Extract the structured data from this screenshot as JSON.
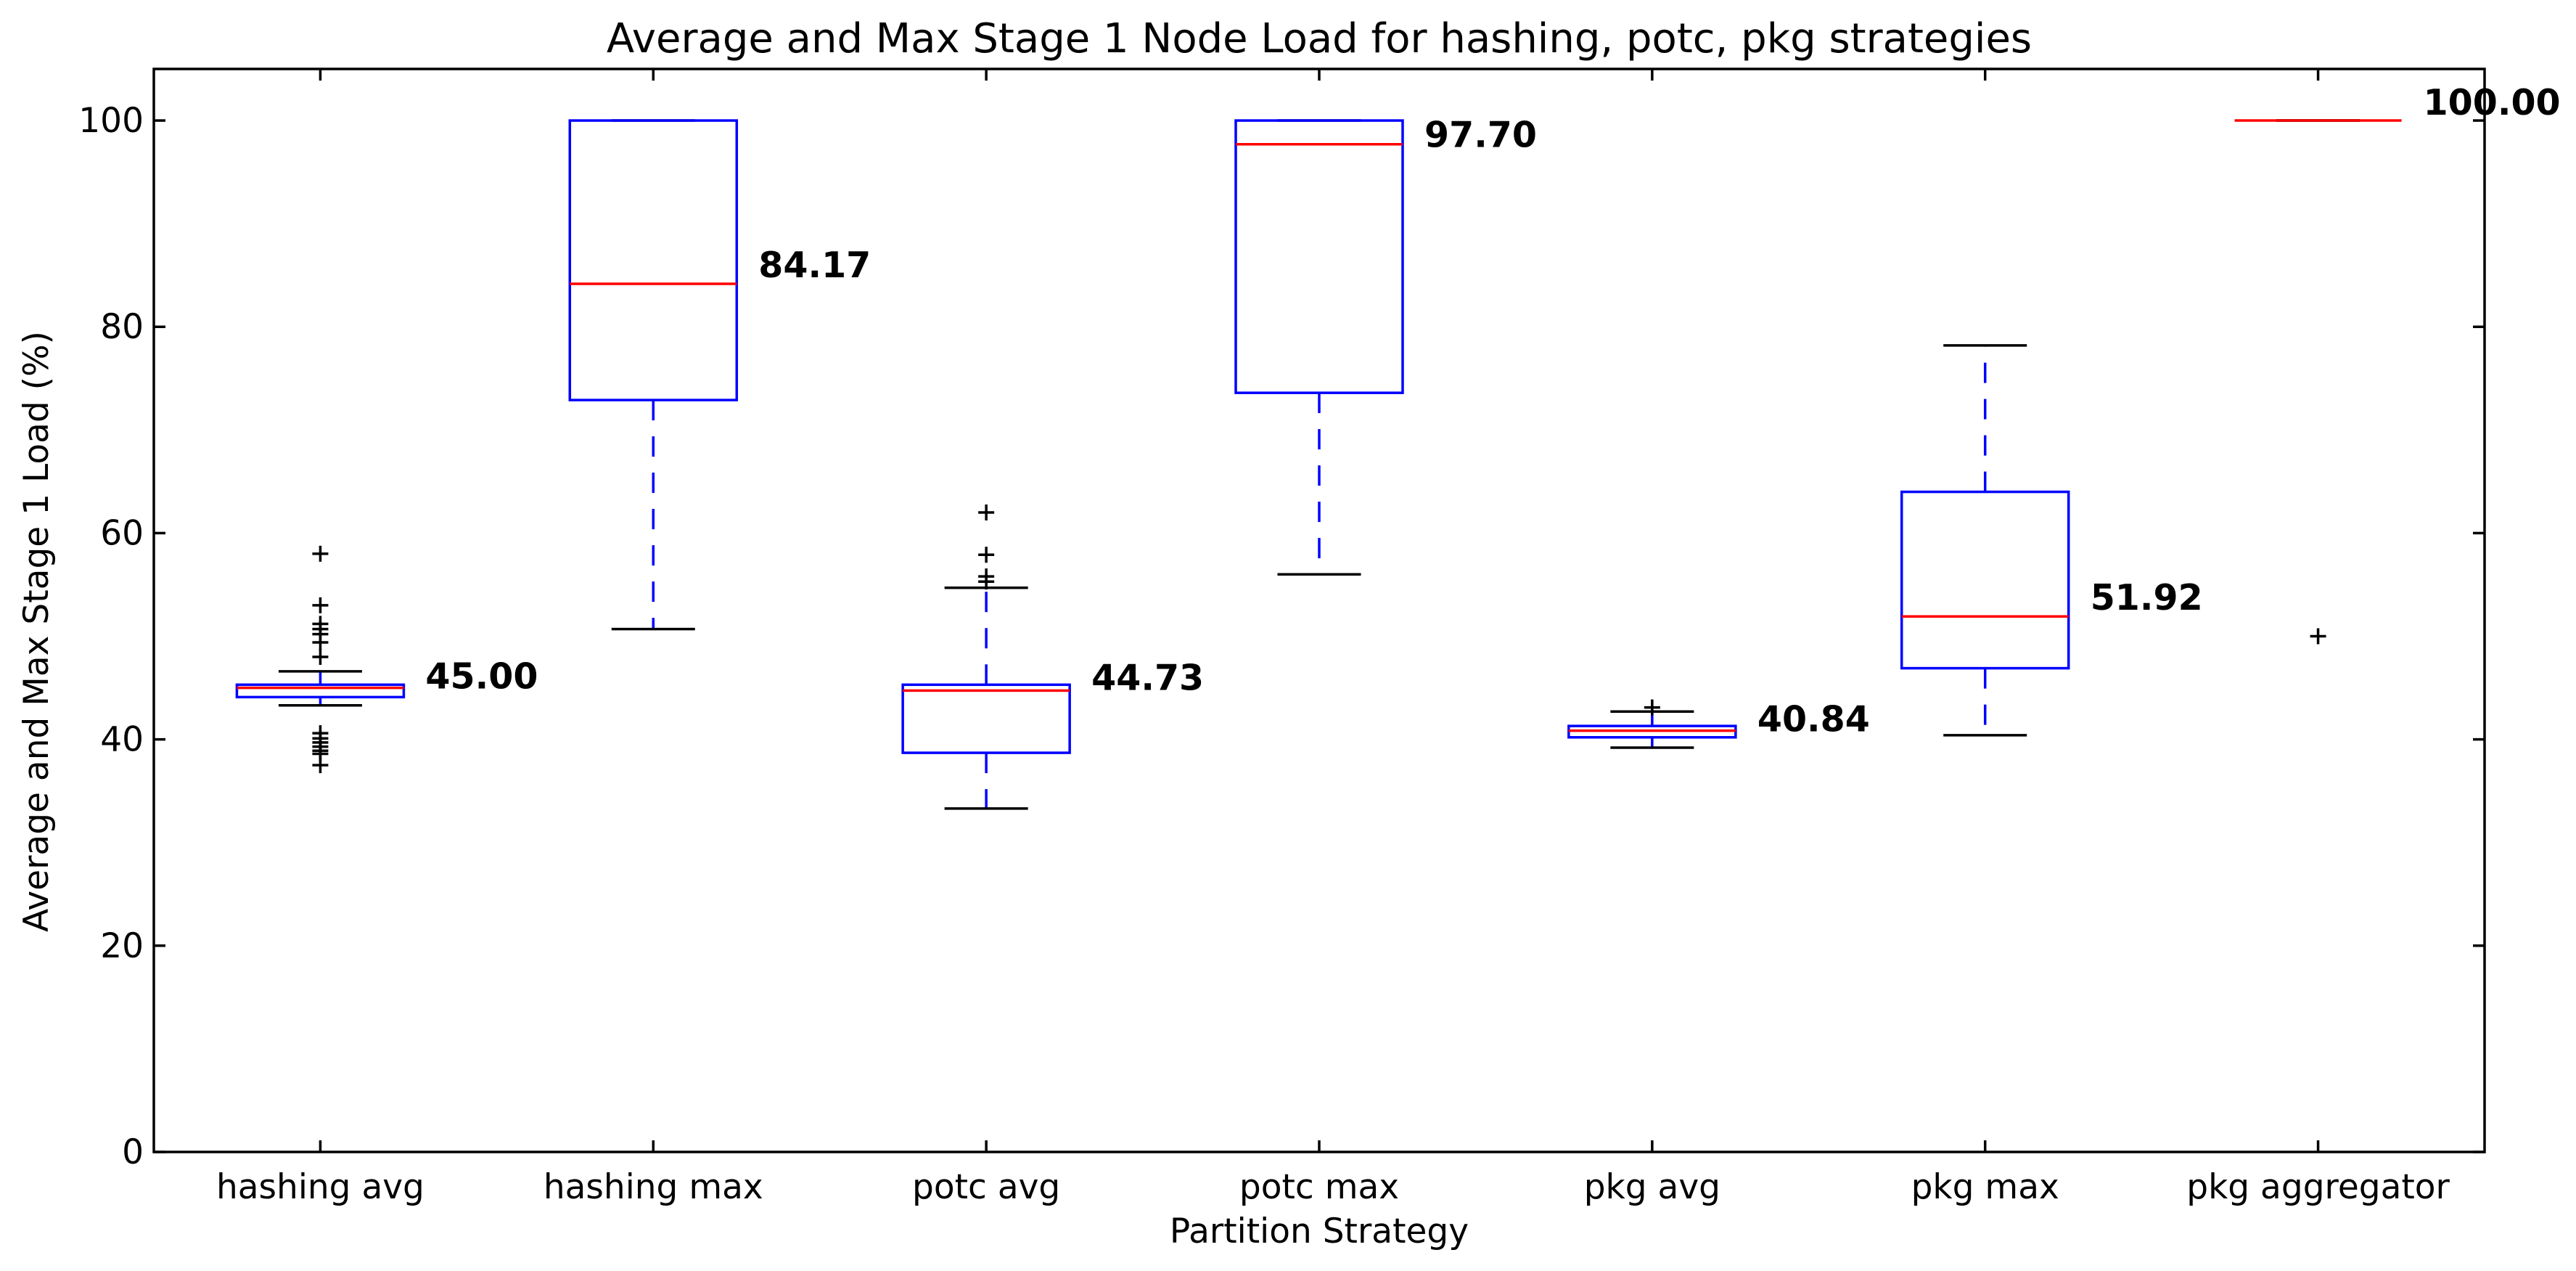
{
  "chart_data": {
    "type": "box",
    "title": "Average and Max Stage 1 Node Load for hashing, potc, pkg strategies",
    "xlabel": "Partition Strategy",
    "ylabel": "Average and Max Stage 1 Load (%)",
    "ylim": [
      0,
      105
    ],
    "yticks": [
      0,
      20,
      40,
      60,
      80,
      100
    ],
    "grid": false,
    "legend": "none",
    "colors": {
      "box": "#0000ff",
      "median": "#ff0000",
      "whisker_cap": "#000000",
      "flier": "#000000"
    },
    "categories": [
      "hashing avg",
      "hashing max",
      "potc avg",
      "potc max",
      "pkg avg",
      "pkg max",
      "pkg aggregator"
    ],
    "boxes": [
      {
        "category": "hashing avg",
        "q1": 44.1,
        "median": 45.0,
        "q3": 45.3,
        "whisker_low": 43.3,
        "whisker_high": 46.6,
        "median_label": "45.00",
        "fliers": [
          58.0,
          53.0,
          51.2,
          50.7,
          50.2,
          49.4,
          48.0,
          40.6,
          40.1,
          39.7,
          39.3,
          38.9,
          38.6,
          37.5
        ]
      },
      {
        "category": "hashing max",
        "q1": 72.9,
        "median": 84.17,
        "q3": 100.0,
        "whisker_low": 50.7,
        "whisker_high": 100.0,
        "median_label": "84.17",
        "fliers": []
      },
      {
        "category": "potc avg",
        "q1": 38.7,
        "median": 44.73,
        "q3": 45.3,
        "whisker_low": 33.3,
        "whisker_high": 54.7,
        "median_label": "44.73",
        "fliers": [
          62.0,
          57.9,
          55.8,
          55.3
        ]
      },
      {
        "category": "potc max",
        "q1": 73.6,
        "median": 97.7,
        "q3": 100.0,
        "whisker_low": 56.0,
        "whisker_high": 100.0,
        "median_label": "97.70",
        "fliers": []
      },
      {
        "category": "pkg avg",
        "q1": 40.2,
        "median": 40.84,
        "q3": 41.3,
        "whisker_low": 39.2,
        "whisker_high": 42.7,
        "median_label": "40.84",
        "fliers": [
          43.1
        ]
      },
      {
        "category": "pkg max",
        "q1": 46.9,
        "median": 51.92,
        "q3": 64.0,
        "whisker_low": 40.4,
        "whisker_high": 78.2,
        "median_label": "51.92",
        "fliers": []
      },
      {
        "category": "pkg aggregator",
        "q1": 100.0,
        "median": 100.0,
        "q3": 100.0,
        "whisker_low": 100.0,
        "whisker_high": 100.0,
        "median_label": "100.00",
        "fliers": [
          50.0
        ]
      }
    ]
  }
}
